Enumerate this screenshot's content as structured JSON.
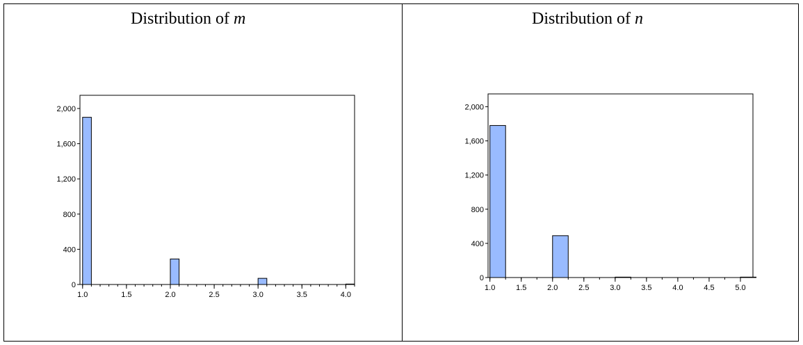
{
  "panels": [
    {
      "title_prefix": "Distribution of ",
      "title_var": "m"
    },
    {
      "title_prefix": "Distribution of ",
      "title_var": "n"
    }
  ],
  "chart_data": [
    {
      "type": "bar",
      "title": "Distribution of m",
      "xlabel": "",
      "ylabel": "",
      "xlim": [
        0.97,
        4.1
      ],
      "ylim": [
        0,
        2150
      ],
      "bin_width": 0.1,
      "x_ticks": [
        "1.0",
        "1.5",
        "2.0",
        "2.5",
        "3.0",
        "3.5",
        "4.0"
      ],
      "y_ticks": [
        "0",
        "400",
        "800",
        "1,200",
        "1,600",
        "2,000"
      ],
      "bars": [
        {
          "x": 1.0,
          "value": 1900
        },
        {
          "x": 2.0,
          "value": 290
        },
        {
          "x": 3.0,
          "value": 70
        },
        {
          "x": 4.0,
          "value": 5
        }
      ],
      "bar_color": "#99bbff",
      "grid": false
    },
    {
      "type": "bar",
      "title": "Distribution of n",
      "xlabel": "",
      "ylabel": "",
      "xlim": [
        0.97,
        5.2
      ],
      "ylim": [
        0,
        2150
      ],
      "bin_width": 0.25,
      "x_ticks": [
        "1.0",
        "1.5",
        "2.0",
        "2.5",
        "3.0",
        "3.5",
        "4.0",
        "4.5",
        "5.0"
      ],
      "y_ticks": [
        "0",
        "400",
        "800",
        "1,200",
        "1,600",
        "2,000"
      ],
      "bars": [
        {
          "x": 1.0,
          "value": 1780
        },
        {
          "x": 2.0,
          "value": 490
        },
        {
          "x": 3.0,
          "value": 5
        },
        {
          "x": 5.0,
          "value": 5
        }
      ],
      "bar_color": "#99bbff",
      "grid": false
    }
  ]
}
